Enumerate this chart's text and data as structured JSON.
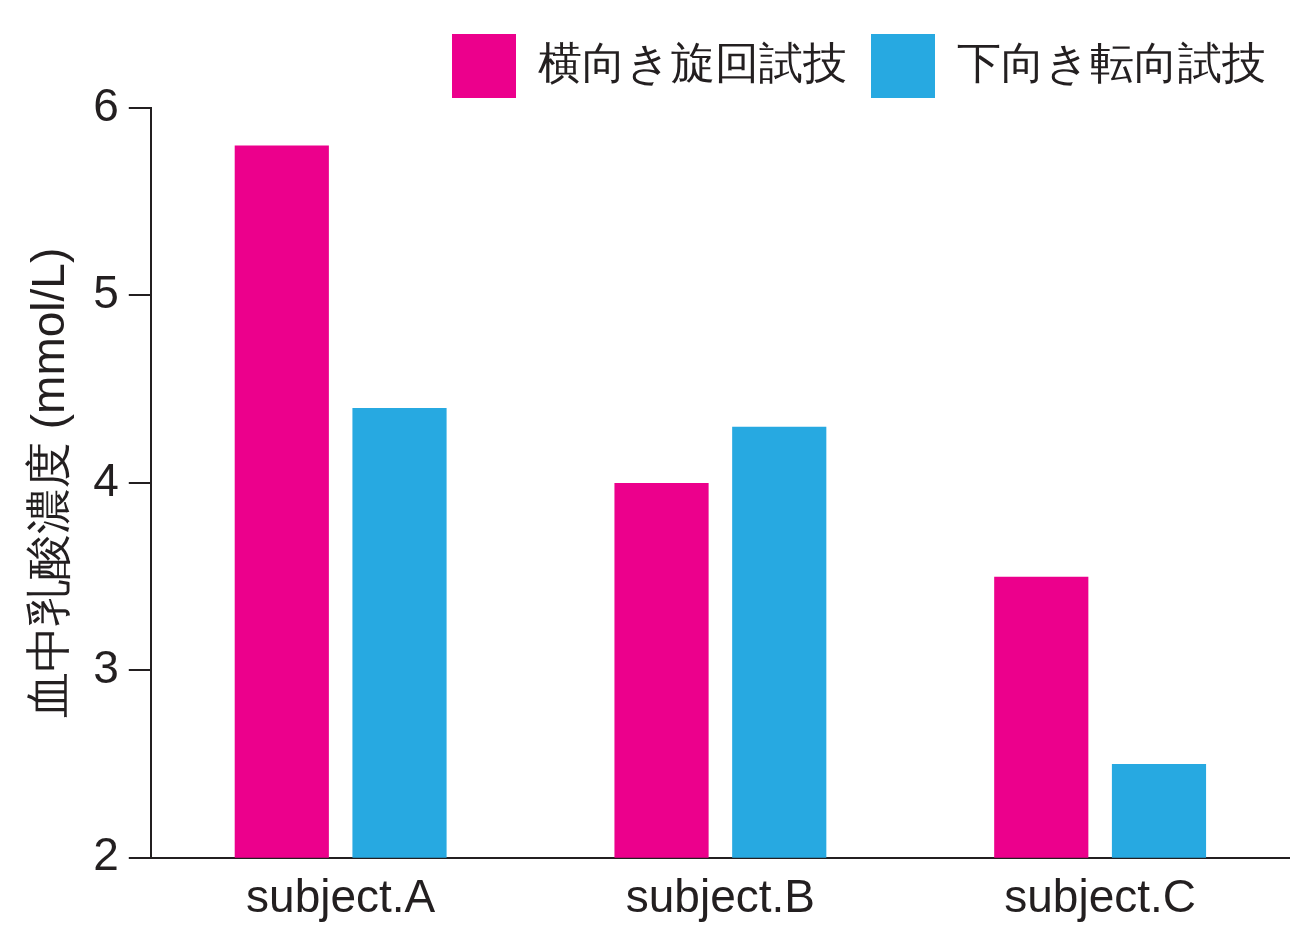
{
  "chart_data": {
    "type": "bar",
    "ylabel": "血中乳酸濃度 (mmol/L)",
    "categories": [
      "subject.A",
      "subject.B",
      "subject.C"
    ],
    "series": [
      {
        "name": "横向き旋回試技",
        "color": "#ec008c",
        "values": [
          5.8,
          4.0,
          3.5
        ]
      },
      {
        "name": "下向き転向試技",
        "color": "#27a9e1",
        "values": [
          4.4,
          4.3,
          2.5
        ]
      }
    ],
    "ylim": [
      2,
      6
    ],
    "yticks": [
      2,
      3,
      4,
      5,
      6
    ],
    "grid": false,
    "legend": "top right"
  }
}
